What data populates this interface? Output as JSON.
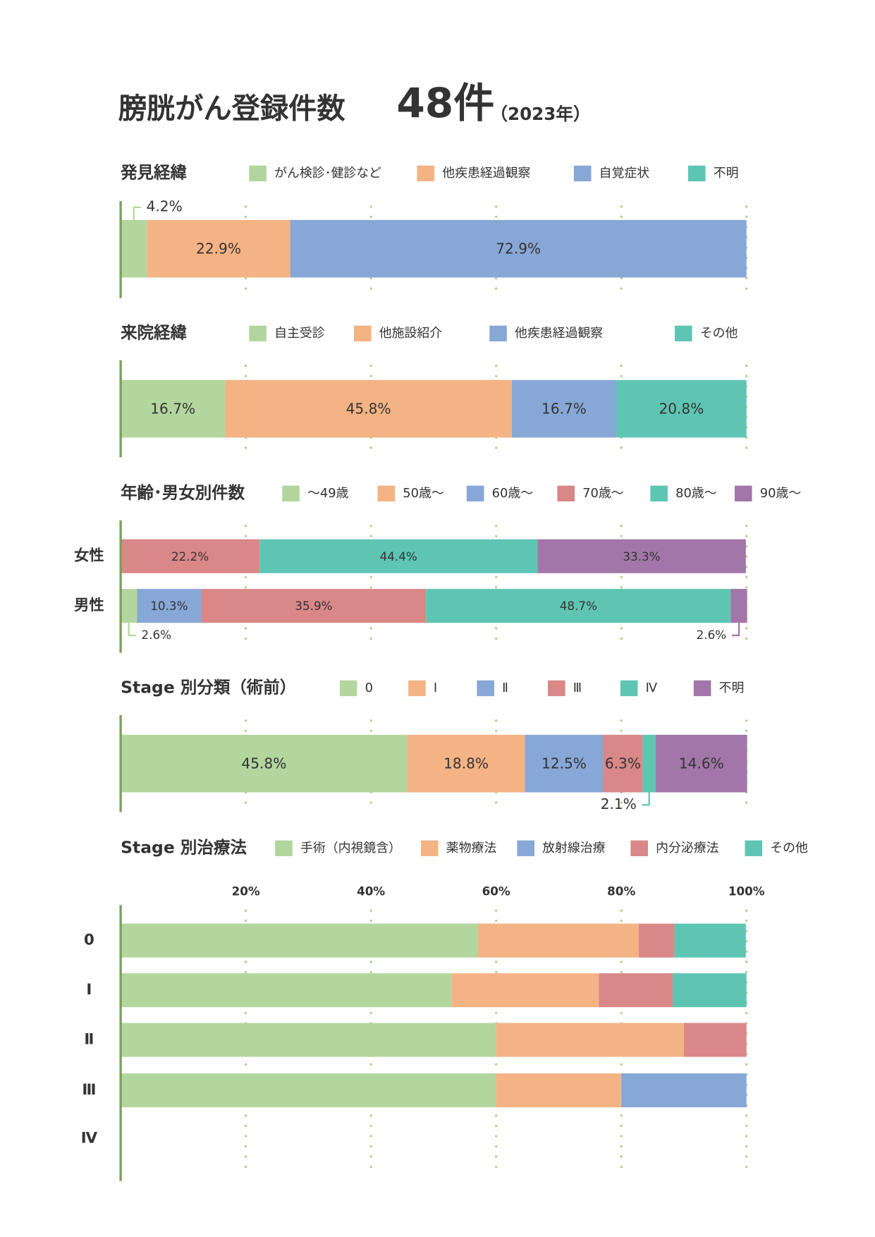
{
  "title": {
    "main": "膀胱がん登録件数",
    "count": "48件",
    "year": "（2023年）"
  },
  "chart_data": [
    {
      "type": "bar",
      "orientation": "horizontal",
      "stacked": true,
      "title": "発見経緯",
      "categories": [
        null
      ],
      "xlim": [
        0,
        100
      ],
      "xticks": [
        20,
        40,
        60,
        80,
        100
      ],
      "grid": true,
      "series": [
        {
          "name": "がん検診･健診など",
          "color": "#b3d69e",
          "values": [
            4.2
          ],
          "value_labels": [
            "4.2%"
          ]
        },
        {
          "name": "他疾患経過観察",
          "color": "#f4b384",
          "values": [
            22.9
          ],
          "value_labels": [
            "22.9%"
          ]
        },
        {
          "name": "自覚症状",
          "color": "#87a7d6",
          "values": [
            72.9
          ],
          "value_labels": [
            "72.9%"
          ]
        },
        {
          "name": "不明",
          "color": "#5fc5b3",
          "values": [
            0
          ],
          "value_labels": [
            null
          ]
        }
      ]
    },
    {
      "type": "bar",
      "orientation": "horizontal",
      "stacked": true,
      "title": "来院経緯",
      "categories": [
        null
      ],
      "xlim": [
        0,
        100
      ],
      "xticks": [
        20,
        40,
        60,
        80,
        100
      ],
      "grid": true,
      "series": [
        {
          "name": "自主受診",
          "color": "#b3d69e",
          "values": [
            16.7
          ],
          "value_labels": [
            "16.7%"
          ]
        },
        {
          "name": "他施設紹介",
          "color": "#f4b384",
          "values": [
            45.8
          ],
          "value_labels": [
            "45.8%"
          ]
        },
        {
          "name": "他疾患経過観察",
          "color": "#87a7d6",
          "values": [
            16.7
          ],
          "value_labels": [
            "16.7%"
          ]
        },
        {
          "name": "その他",
          "color": "#5fc5b3",
          "values": [
            20.8
          ],
          "value_labels": [
            "20.8%"
          ]
        }
      ]
    },
    {
      "type": "bar",
      "orientation": "horizontal",
      "stacked": true,
      "title": "年齢･男女別件数",
      "categories": [
        "女性",
        "男性"
      ],
      "xlim": [
        0,
        100
      ],
      "xticks": [
        20,
        40,
        60,
        80,
        100
      ],
      "grid": true,
      "series": [
        {
          "name": "～49歳",
          "color": "#b3d69e",
          "values": [
            0,
            2.6
          ],
          "value_labels": [
            null,
            "2.6%"
          ]
        },
        {
          "name": "50歳～",
          "color": "#f4b384",
          "values": [
            0,
            0
          ],
          "value_labels": [
            null,
            null
          ]
        },
        {
          "name": "60歳～",
          "color": "#87a7d6",
          "values": [
            0,
            10.3
          ],
          "value_labels": [
            null,
            "10.3%"
          ]
        },
        {
          "name": "70歳～",
          "color": "#d98787",
          "values": [
            22.2,
            35.9
          ],
          "value_labels": [
            "22.2%",
            "35.9%"
          ]
        },
        {
          "name": "80歳～",
          "color": "#5fc5b3",
          "values": [
            44.4,
            48.7
          ],
          "value_labels": [
            "44.4%",
            "48.7%"
          ]
        },
        {
          "name": "90歳～",
          "color": "#a276a8",
          "values": [
            33.3,
            2.6
          ],
          "value_labels": [
            "33.3%",
            "2.6%"
          ]
        }
      ]
    },
    {
      "type": "bar",
      "orientation": "horizontal",
      "stacked": true,
      "title": "Stage 別分類（術前）",
      "categories": [
        null
      ],
      "xlim": [
        0,
        100
      ],
      "xticks": [
        20,
        40,
        60,
        80,
        100
      ],
      "grid": true,
      "series": [
        {
          "name": "0",
          "color": "#b3d69e",
          "values": [
            45.8
          ],
          "value_labels": [
            "45.8%"
          ]
        },
        {
          "name": "Ⅰ",
          "color": "#f4b384",
          "values": [
            18.8
          ],
          "value_labels": [
            "18.8%"
          ]
        },
        {
          "name": "Ⅱ",
          "color": "#87a7d6",
          "values": [
            12.5
          ],
          "value_labels": [
            "12.5%"
          ]
        },
        {
          "name": "Ⅲ",
          "color": "#d98787",
          "values": [
            6.3
          ],
          "value_labels": [
            "6.3%"
          ]
        },
        {
          "name": "Ⅳ",
          "color": "#5fc5b3",
          "values": [
            2.1
          ],
          "value_labels": [
            "2.1%"
          ]
        },
        {
          "name": "不明",
          "color": "#a276a8",
          "values": [
            14.6
          ],
          "value_labels": [
            "14.6%"
          ]
        }
      ]
    },
    {
      "type": "bar",
      "orientation": "horizontal",
      "stacked": true,
      "title": "Stage 別治療法",
      "categories": [
        "0",
        "Ⅰ",
        "Ⅱ",
        "Ⅲ",
        "Ⅳ"
      ],
      "xlim": [
        0,
        100
      ],
      "xticks": [
        {
          "value": 20,
          "label": "20%"
        },
        {
          "value": 40,
          "label": "40%"
        },
        {
          "value": 60,
          "label": "60%"
        },
        {
          "value": 80,
          "label": "80%"
        },
        {
          "value": 100,
          "label": "100%"
        }
      ],
      "grid": true,
      "series": [
        {
          "name": "手術（内視鏡含）",
          "color": "#b3d69e",
          "values": [
            57.1,
            52.9,
            60,
            60,
            0
          ]
        },
        {
          "name": "薬物療法",
          "color": "#f4b384",
          "values": [
            25.7,
            23.5,
            30,
            20,
            0
          ]
        },
        {
          "name": "放射線治療",
          "color": "#87a7d6",
          "values": [
            0,
            0,
            0,
            20,
            0
          ]
        },
        {
          "name": "内分泌療法",
          "color": "#d98787",
          "values": [
            5.7,
            11.8,
            10,
            0,
            0
          ]
        },
        {
          "name": "その他",
          "color": "#5fc5b3",
          "values": [
            11.4,
            11.8,
            0,
            0,
            0
          ]
        }
      ]
    }
  ]
}
